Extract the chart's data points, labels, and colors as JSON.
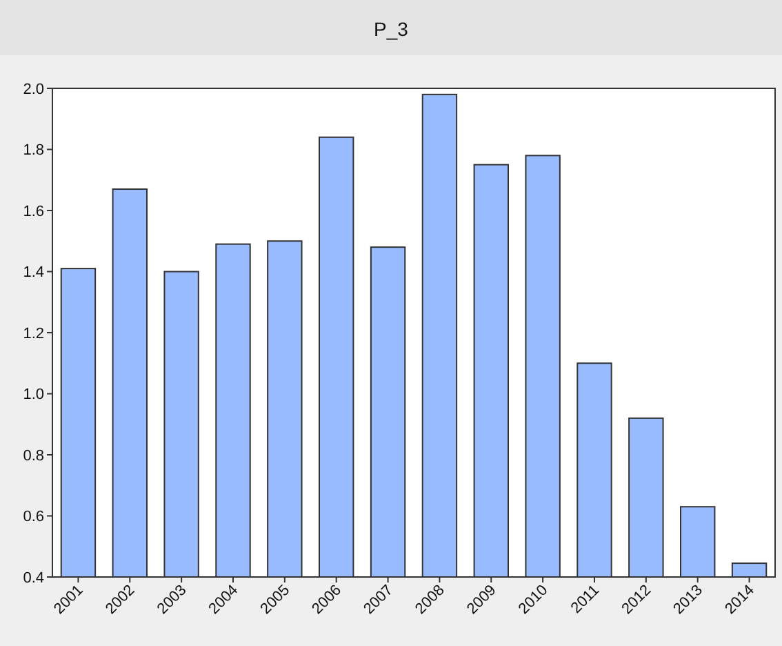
{
  "chart_data": {
    "type": "bar",
    "title": "P_3",
    "categories": [
      "2001",
      "2002",
      "2003",
      "2004",
      "2005",
      "2006",
      "2007",
      "2008",
      "2009",
      "2010",
      "2011",
      "2012",
      "2013",
      "2014"
    ],
    "values": [
      1.41,
      1.67,
      1.4,
      1.49,
      1.5,
      1.84,
      1.48,
      1.98,
      1.75,
      1.78,
      1.1,
      0.92,
      0.63,
      0.445
    ],
    "color": "#99bbff",
    "ylim": [
      0.4,
      2.0
    ],
    "yticks": [
      {
        "value": 0.4,
        "label": "0.4"
      },
      {
        "value": 0.6,
        "label": "0.6"
      },
      {
        "value": 0.8,
        "label": "0.8"
      },
      {
        "value": 1.0,
        "label": "1.0"
      },
      {
        "value": 1.2,
        "label": "1.2"
      },
      {
        "value": 1.4,
        "label": "1.4"
      },
      {
        "value": 1.6,
        "label": "1.6"
      },
      {
        "value": 1.8,
        "label": "1.8"
      },
      {
        "value": 2.0,
        "label": "2.0"
      }
    ],
    "grid": false
  }
}
